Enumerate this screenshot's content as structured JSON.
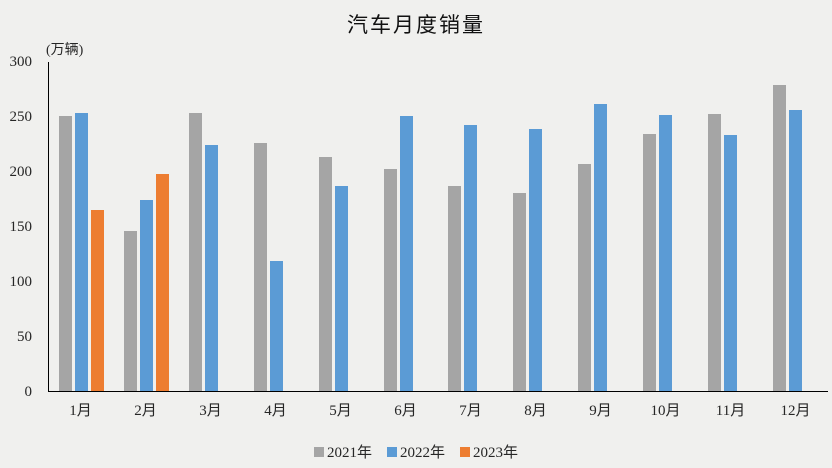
{
  "chart_data": {
    "type": "bar",
    "title": "汽车月度销量",
    "unit_label": "(万辆)",
    "categories": [
      "1月",
      "2月",
      "3月",
      "4月",
      "5月",
      "6月",
      "7月",
      "8月",
      "9月",
      "10月",
      "11月",
      "12月"
    ],
    "series": [
      {
        "name": "2021年",
        "color": "#A5A5A5",
        "values": [
          250.3,
          145.5,
          252.6,
          225.2,
          212.8,
          201.5,
          186.4,
          179.9,
          206.7,
          233.3,
          252.2,
          278.6
        ]
      },
      {
        "name": "2022年",
        "color": "#5B9BD5",
        "values": [
          253.1,
          173.7,
          223.4,
          118.1,
          186.2,
          250.2,
          242.0,
          238.3,
          261.0,
          250.5,
          232.8,
          255.6
        ]
      },
      {
        "name": "2023年",
        "color": "#ED7D31",
        "values": [
          164.9,
          197.6,
          null,
          null,
          null,
          null,
          null,
          null,
          null,
          null,
          null,
          null
        ]
      }
    ],
    "ylim": [
      0,
      300
    ],
    "yticks": [
      0,
      50,
      100,
      150,
      200,
      250,
      300
    ],
    "grid": false,
    "legend_position": "bottom",
    "background_color": "#F0F0EE",
    "axis_color": "#000000"
  }
}
